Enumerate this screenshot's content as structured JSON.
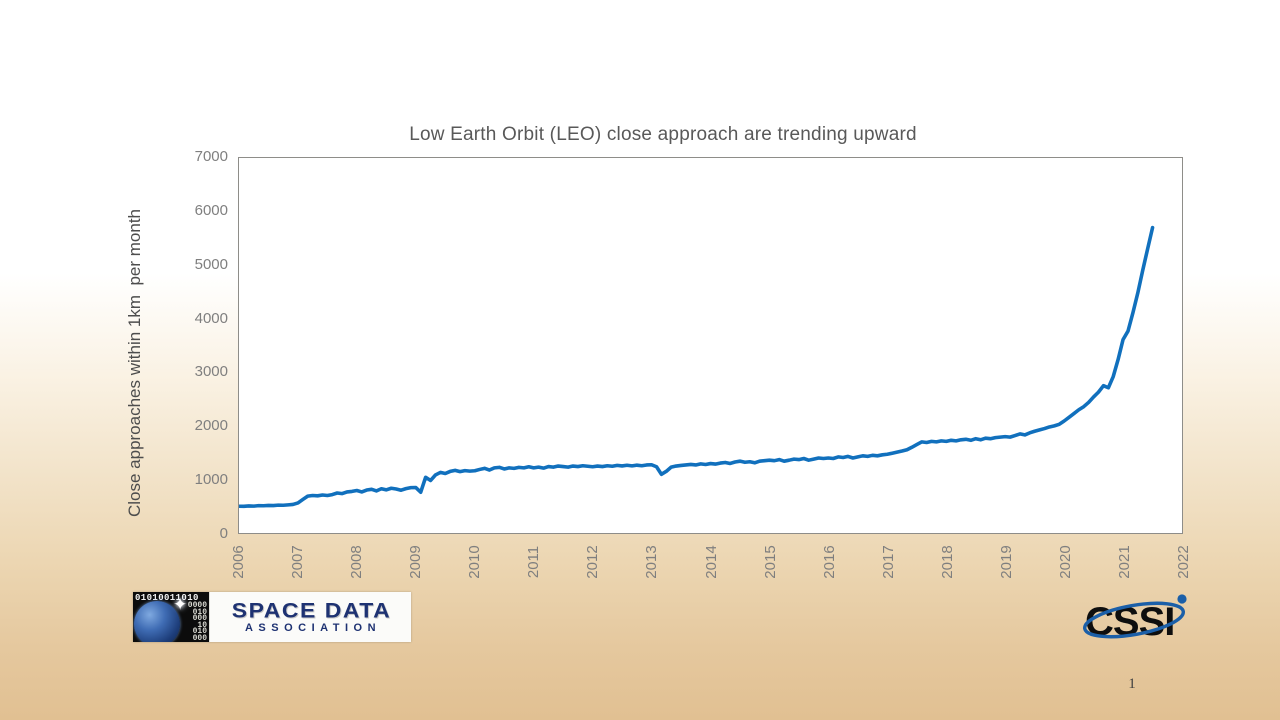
{
  "slide": {
    "page_number": "1"
  },
  "chart_data": {
    "type": "line",
    "title": "Low Earth Orbit (LEO) close approach are trending upward",
    "ylabel": "Close approaches within 1km  per month",
    "xlabel": "",
    "grid": false,
    "legend": "none",
    "plot_background": "#ffffff",
    "border_color": "#8e8d89",
    "line_color": "#1170bd",
    "text_color_title": "#595959",
    "text_color_ticks": "#7f7f7f",
    "xlim": [
      2006,
      2022
    ],
    "ylim": [
      0,
      7000
    ],
    "x_tick_labels": [
      "2006",
      "2007",
      "2008",
      "2009",
      "2010",
      "2011",
      "2012",
      "2013",
      "2014",
      "2015",
      "2016",
      "2017",
      "2018",
      "2019",
      "2020",
      "2021",
      "2022"
    ],
    "y_tick_labels": [
      "0",
      "1000",
      "2000",
      "3000",
      "4000",
      "5000",
      "6000",
      "7000"
    ],
    "series": [
      {
        "name": "LEO close approaches within 1 km per month",
        "x_start_year": 2006,
        "x_interval": "monthly",
        "values": [
          500,
          498,
          505,
          502,
          510,
          508,
          515,
          512,
          520,
          518,
          526,
          532,
          560,
          625,
          688,
          700,
          694,
          710,
          700,
          716,
          746,
          736,
          766,
          776,
          792,
          766,
          802,
          816,
          786,
          826,
          806,
          836,
          820,
          798,
          828,
          846,
          848,
          762,
          1040,
          980,
          1085,
          1130,
          1110,
          1150,
          1170,
          1145,
          1165,
          1155,
          1162,
          1186,
          1206,
          1176,
          1216,
          1226,
          1196,
          1216,
          1206,
          1226,
          1216,
          1236,
          1216,
          1230,
          1210,
          1240,
          1230,
          1250,
          1240,
          1230,
          1250,
          1240,
          1256,
          1246,
          1236,
          1250,
          1240,
          1256,
          1246,
          1262,
          1252,
          1264,
          1254,
          1266,
          1256,
          1270,
          1274,
          1236,
          1096,
          1152,
          1230,
          1250,
          1260,
          1270,
          1280,
          1270,
          1290,
          1280,
          1296,
          1286,
          1306,
          1316,
          1298,
          1326,
          1340,
          1320,
          1330,
          1310,
          1340,
          1350,
          1360,
          1350,
          1370,
          1340,
          1360,
          1380,
          1370,
          1390,
          1360,
          1380,
          1400,
          1390,
          1400,
          1390,
          1420,
          1410,
          1430,
          1400,
          1420,
          1440,
          1430,
          1450,
          1440,
          1460,
          1470,
          1490,
          1510,
          1530,
          1555,
          1600,
          1650,
          1700,
          1690,
          1710,
          1700,
          1720,
          1710,
          1730,
          1720,
          1740,
          1750,
          1730,
          1760,
          1740,
          1770,
          1760,
          1780,
          1790,
          1800,
          1790,
          1820,
          1850,
          1830,
          1870,
          1900,
          1925,
          1950,
          1980,
          2000,
          2030,
          2090,
          2160,
          2230,
          2300,
          2360,
          2440,
          2540,
          2630,
          2750,
          2710,
          2920,
          3240,
          3610,
          3770,
          4110,
          4480,
          4900,
          5300,
          5700
        ]
      }
    ]
  },
  "logos": {
    "sda": {
      "binary_header": "01010011010",
      "binary_rows": [
        "0000",
        "010",
        "000",
        "10",
        "010",
        "000"
      ],
      "line1": "SPACE DATA",
      "line2": "ASSOCIATION"
    },
    "cssi": {
      "text": "CSSI"
    }
  }
}
